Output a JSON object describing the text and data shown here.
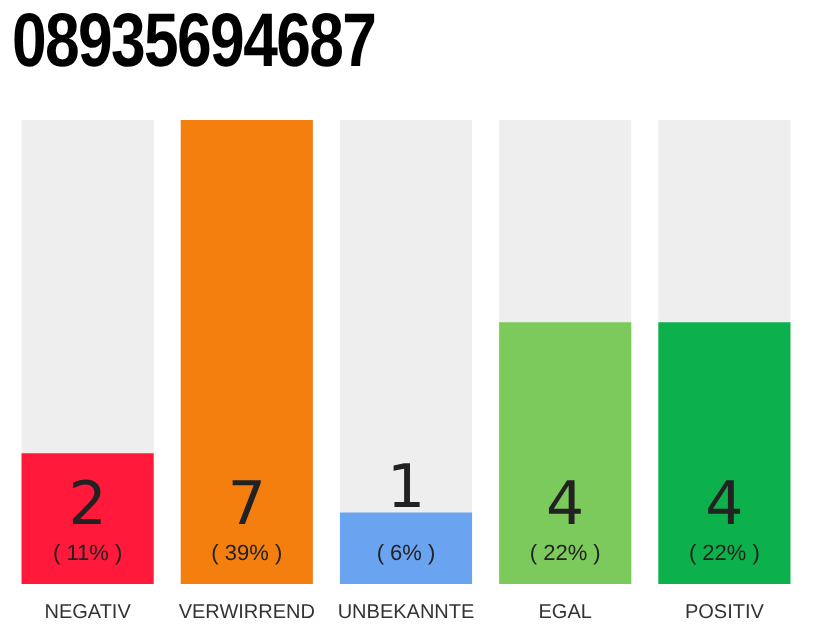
{
  "chart_data": {
    "type": "bar",
    "title": "08935694687",
    "categories": [
      "NEGATIV",
      "VERWIRREND",
      "UNBEKANNTE",
      "EGAL",
      "POSITIV"
    ],
    "values": [
      11,
      39,
      6,
      22,
      22
    ],
    "colors": [
      "#ff1a3c",
      "#f47f0f",
      "#6aa3f0",
      "#7dca5c",
      "#0db14b"
    ],
    "value_labels": [
      "( 11% )",
      "( 39% )",
      "( 6% )",
      "( 22% )",
      "( 22% )"
    ],
    "annotations": [
      "2",
      "7",
      "1",
      "4",
      "4"
    ],
    "tick_labels": "x",
    "grid": false,
    "legend": false
  }
}
